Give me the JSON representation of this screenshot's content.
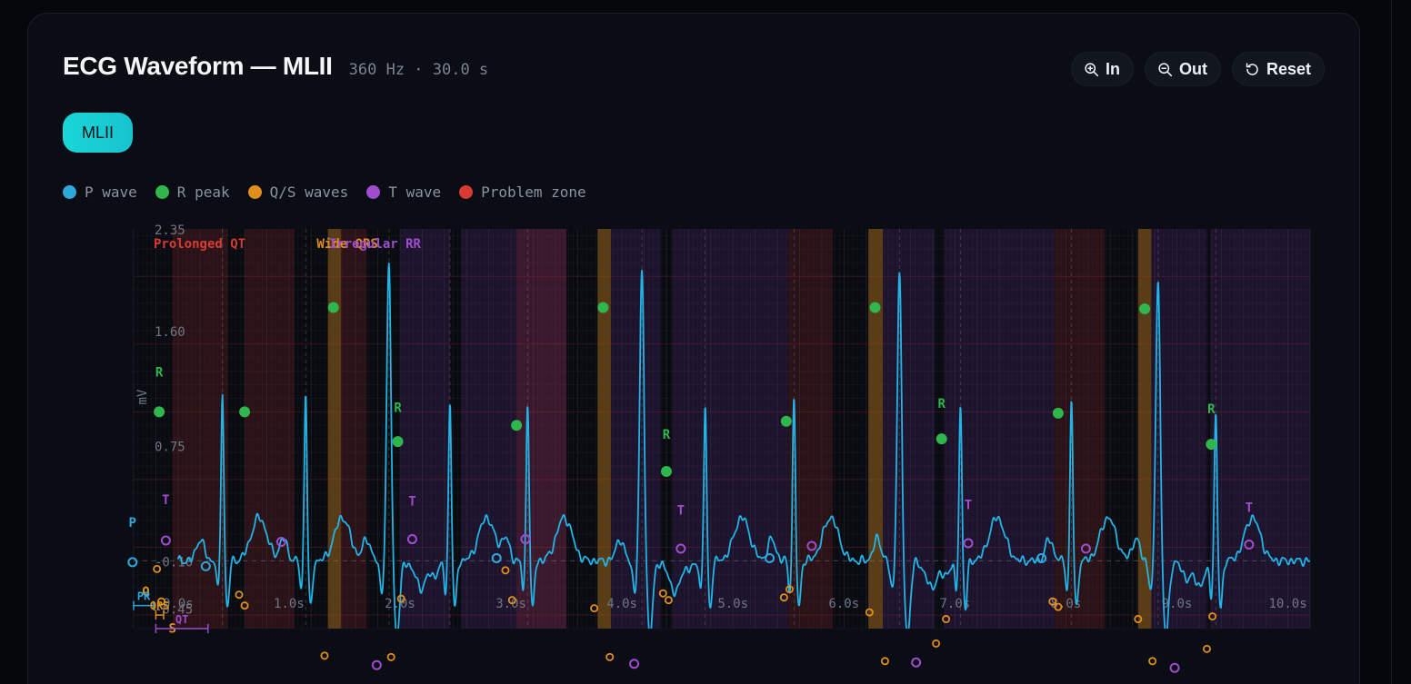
{
  "header": {
    "title": "ECG Waveform — MLII",
    "meta": "360 Hz · 30.0 s"
  },
  "zoom": {
    "in_label": "In",
    "out_label": "Out",
    "reset_label": "Reset"
  },
  "leads": [
    "MLII"
  ],
  "legend": [
    {
      "label": "P wave",
      "color": "#2ea8dc",
      "icon": "circle"
    },
    {
      "label": "R peak",
      "color": "#2fb64c",
      "icon": "circle"
    },
    {
      "label": "Q/S waves",
      "color": "#e08e1c",
      "icon": "circle"
    },
    {
      "label": "T wave",
      "color": "#a04ccf",
      "icon": "circle"
    },
    {
      "label": "Problem zone",
      "color": "#d83b32",
      "icon": "circle"
    }
  ],
  "colors": {
    "signal": "#22b4e6",
    "p": "#2ea8dc",
    "r": "#2fb64c",
    "qs": "#e08e1c",
    "t": "#a04ccf",
    "zone": "#d83b32"
  },
  "chart_data": {
    "type": "line",
    "ylabel": "mV",
    "xlim": [
      -0.4,
      10.2
    ],
    "ylim": [
      -0.6,
      2.35
    ],
    "x_ticks": [
      "0.0s",
      "1.0s",
      "2.0s",
      "3.0s",
      "4.0s",
      "5.0s",
      "6.0s",
      "7.0s",
      "8.0s",
      "9.0s",
      "10.0s"
    ],
    "y_ticks": [
      {
        "value": 2.35,
        "label": "2.35"
      },
      {
        "value": 1.6,
        "label": "1.60"
      },
      {
        "value": 0.75,
        "label": "0.75"
      },
      {
        "value": -0.1,
        "label": "-0.10"
      },
      {
        "value": -0.45,
        "label": "-0.45"
      }
    ],
    "problem_zone_labels": [
      {
        "text": "Prolonged QT",
        "x": -0.22,
        "color": "#d83b32"
      },
      {
        "text": "Wide QRS",
        "x": 1.25,
        "color": "#e08e1c"
      },
      {
        "text": "Irregular RR",
        "x": 1.36,
        "color": "#a04ccf"
      }
    ],
    "problem_zones": [
      {
        "x0": -0.05,
        "x1": 0.45,
        "kind": "qt"
      },
      {
        "x0": 0.6,
        "x1": 1.05,
        "kind": "qt"
      },
      {
        "x0": 1.35,
        "x1": 1.47,
        "kind": "qrs"
      },
      {
        "x0": 1.47,
        "x1": 1.7,
        "kind": "qt"
      },
      {
        "x0": 2.0,
        "x1": 2.45,
        "kind": "rr"
      },
      {
        "x0": 2.55,
        "x1": 3.5,
        "kind": "rr"
      },
      {
        "x0": 3.05,
        "x1": 3.5,
        "kind": "qt"
      },
      {
        "x0": 3.78,
        "x1": 3.9,
        "kind": "qrs"
      },
      {
        "x0": 3.9,
        "x1": 4.35,
        "kind": "rr"
      },
      {
        "x0": 4.45,
        "x1": 5.5,
        "kind": "rr"
      },
      {
        "x0": 5.5,
        "x1": 5.9,
        "kind": "qt"
      },
      {
        "x0": 6.22,
        "x1": 6.35,
        "kind": "qrs"
      },
      {
        "x0": 6.35,
        "x1": 6.82,
        "kind": "rr"
      },
      {
        "x0": 6.9,
        "x1": 7.9,
        "kind": "rr"
      },
      {
        "x0": 7.9,
        "x1": 8.35,
        "kind": "qt"
      },
      {
        "x0": 8.65,
        "x1": 8.77,
        "kind": "qrs"
      },
      {
        "x0": 8.77,
        "x1": 9.27,
        "kind": "rr"
      },
      {
        "x0": 9.3,
        "x1": 10.2,
        "kind": "rr"
      }
    ],
    "beats": [
      {
        "r": 0.4,
        "amp": 1.0,
        "type": "normal"
      },
      {
        "r": 1.15,
        "amp": 1.0,
        "type": "normal"
      },
      {
        "r": 1.9,
        "amp": 1.75,
        "type": "wide"
      },
      {
        "r": 2.45,
        "amp": 0.95,
        "type": "normal"
      },
      {
        "r": 3.15,
        "amp": 0.95,
        "type": "normal"
      },
      {
        "r": 4.18,
        "amp": 1.72,
        "type": "wide"
      },
      {
        "r": 4.75,
        "amp": 0.92,
        "type": "normal"
      },
      {
        "r": 5.55,
        "amp": 0.95,
        "type": "normal"
      },
      {
        "r": 6.5,
        "amp": 1.7,
        "type": "wide"
      },
      {
        "r": 7.05,
        "amp": 0.92,
        "type": "normal"
      },
      {
        "r": 8.05,
        "amp": 0.95,
        "type": "normal"
      },
      {
        "r": 8.83,
        "amp": 1.68,
        "type": "wide"
      },
      {
        "r": 9.35,
        "amp": 0.88,
        "type": "normal"
      }
    ],
    "r_markers": [
      {
        "x": -0.17,
        "y": 1.0
      },
      {
        "x": 0.6,
        "y": 1.0
      },
      {
        "x": 1.4,
        "y": 1.77
      },
      {
        "x": 1.98,
        "y": 0.78
      },
      {
        "x": 3.05,
        "y": 0.9
      },
      {
        "x": 3.83,
        "y": 1.77
      },
      {
        "x": 4.4,
        "y": 0.56
      },
      {
        "x": 5.48,
        "y": 0.93
      },
      {
        "x": 6.28,
        "y": 1.77
      },
      {
        "x": 6.88,
        "y": 0.8
      },
      {
        "x": 7.93,
        "y": 0.99
      },
      {
        "x": 8.71,
        "y": 1.76
      },
      {
        "x": 9.31,
        "y": 0.76
      }
    ],
    "r_labels": [
      {
        "x": -0.17,
        "y": 1.26
      },
      {
        "x": 1.98,
        "y": 1.0
      },
      {
        "x": 4.4,
        "y": 0.8
      },
      {
        "x": 6.88,
        "y": 1.03
      },
      {
        "x": 9.31,
        "y": 0.99
      }
    ],
    "p_markers": [
      {
        "x": -0.41,
        "y": -0.11
      },
      {
        "x": 0.25,
        "y": -0.14
      },
      {
        "x": 2.87,
        "y": -0.08
      },
      {
        "x": 5.33,
        "y": -0.08
      },
      {
        "x": 7.78,
        "y": -0.08
      }
    ],
    "p_labels": [
      {
        "x": -0.41,
        "y": 0.15
      }
    ],
    "qs_markers": [
      {
        "x": -0.19,
        "y": -0.16
      },
      {
        "x": -0.15,
        "y": -0.4
      },
      {
        "x": 0.55,
        "y": -0.35
      },
      {
        "x": 0.6,
        "y": -0.43
      },
      {
        "x": 1.32,
        "y": -0.8
      },
      {
        "x": 1.46,
        "y": -1.1
      },
      {
        "x": 1.92,
        "y": -0.81
      },
      {
        "x": 2.01,
        "y": -0.38
      },
      {
        "x": 2.95,
        "y": -0.17
      },
      {
        "x": 3.01,
        "y": -0.39
      },
      {
        "x": 3.75,
        "y": -0.45
      },
      {
        "x": 3.89,
        "y": -0.81
      },
      {
        "x": 4.37,
        "y": -0.34
      },
      {
        "x": 4.42,
        "y": -0.39
      },
      {
        "x": 5.46,
        "y": -0.37
      },
      {
        "x": 5.51,
        "y": -0.31
      },
      {
        "x": 6.23,
        "y": -0.48
      },
      {
        "x": 6.37,
        "y": -0.84
      },
      {
        "x": 6.83,
        "y": -0.71
      },
      {
        "x": 6.92,
        "y": -0.53
      },
      {
        "x": 7.88,
        "y": -0.4
      },
      {
        "x": 7.93,
        "y": -0.44
      },
      {
        "x": 8.65,
        "y": -0.53
      },
      {
        "x": 8.78,
        "y": -0.84
      },
      {
        "x": 9.27,
        "y": -0.75
      },
      {
        "x": 9.32,
        "y": -0.51
      }
    ],
    "qs_labels": [
      {
        "text": "Q",
        "x": -0.29,
        "y": -0.36
      },
      {
        "text": "S",
        "x": -0.05,
        "y": -0.63
      }
    ],
    "t_markers": [
      {
        "x": -0.11,
        "y": 0.05
      },
      {
        "x": 0.93,
        "y": 0.04
      },
      {
        "x": 1.79,
        "y": -0.87
      },
      {
        "x": 2.11,
        "y": 0.06
      },
      {
        "x": 3.13,
        "y": 0.06
      },
      {
        "x": 4.11,
        "y": -0.86
      },
      {
        "x": 4.53,
        "y": -0.01
      },
      {
        "x": 5.71,
        "y": 0.01
      },
      {
        "x": 6.65,
        "y": -0.85
      },
      {
        "x": 7.12,
        "y": 0.03
      },
      {
        "x": 8.18,
        "y": -0.01
      },
      {
        "x": 8.98,
        "y": -0.89
      },
      {
        "x": 9.65,
        "y": 0.02
      }
    ],
    "t_labels": [
      {
        "x": -0.11,
        "y": 0.32
      },
      {
        "x": 2.11,
        "y": 0.31
      },
      {
        "x": 4.53,
        "y": 0.24
      },
      {
        "x": 7.12,
        "y": 0.28
      },
      {
        "x": 9.65,
        "y": 0.26
      }
    ],
    "intervals": [
      {
        "label": "PR",
        "x0": -0.4,
        "x1": -0.22,
        "y": -0.43,
        "color": "#2ea8dc"
      },
      {
        "label": "QRS",
        "x0": -0.2,
        "x1": -0.13,
        "y": -0.5,
        "color": "#e08e1c"
      },
      {
        "label": "QT",
        "x0": -0.2,
        "x1": 0.27,
        "y": -0.6,
        "color": "#a04ccf"
      }
    ]
  }
}
